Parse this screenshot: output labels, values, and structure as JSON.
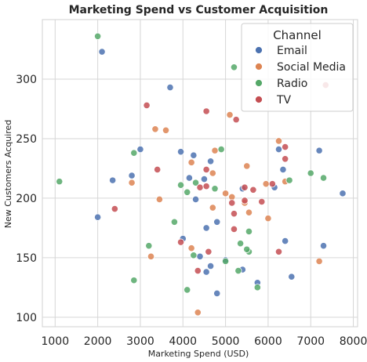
{
  "chart_data": {
    "type": "scatter",
    "title": "Marketing Spend vs Customer Acquisition",
    "xlabel": "Marketing Spend (USD)",
    "ylabel": "New Customers Acquired",
    "xlim": [
      700,
      8100
    ],
    "ylim": [
      92,
      350
    ],
    "xticks": [
      1000,
      2000,
      3000,
      4000,
      5000,
      6000,
      7000,
      8000
    ],
    "yticks": [
      100,
      150,
      200,
      250,
      300
    ],
    "grid": true,
    "legend": {
      "title": "Channel",
      "placement": "top-right"
    },
    "series": [
      {
        "name": "Email",
        "color": "#4c72b0",
        "points": [
          [
            2100,
            323
          ],
          [
            3700,
            293
          ],
          [
            2000,
            184
          ],
          [
            2350,
            215
          ],
          [
            2800,
            219
          ],
          [
            3000,
            241
          ],
          [
            3950,
            239
          ],
          [
            4250,
            236
          ],
          [
            4150,
            217
          ],
          [
            4500,
            216
          ],
          [
            4300,
            199
          ],
          [
            4650,
            231
          ],
          [
            4000,
            166
          ],
          [
            4400,
            151
          ],
          [
            4550,
            138
          ],
          [
            4650,
            143
          ],
          [
            4800,
            120
          ],
          [
            4800,
            180
          ],
          [
            4550,
            175
          ],
          [
            5000,
            148
          ],
          [
            5400,
            208
          ],
          [
            5400,
            140
          ],
          [
            5750,
            129
          ],
          [
            6250,
            241
          ],
          [
            6350,
            224
          ],
          [
            6150,
            209
          ],
          [
            6400,
            164
          ],
          [
            6550,
            134
          ],
          [
            7200,
            240
          ],
          [
            7300,
            160
          ],
          [
            7750,
            204
          ]
        ]
      },
      {
        "name": "Social Media",
        "color": "#dd8452",
        "points": [
          [
            5100,
            270
          ],
          [
            6250,
            248
          ],
          [
            4750,
            240
          ],
          [
            3350,
            258
          ],
          [
            3600,
            257
          ],
          [
            4200,
            230
          ],
          [
            4700,
            221
          ],
          [
            5500,
            227
          ],
          [
            2800,
            213
          ],
          [
            3450,
            199
          ],
          [
            4700,
            192
          ],
          [
            4200,
            158
          ],
          [
            4350,
            104
          ],
          [
            5000,
            204
          ],
          [
            5150,
            201
          ],
          [
            5550,
            188
          ],
          [
            5950,
            212
          ],
          [
            6000,
            183
          ],
          [
            6400,
            214
          ],
          [
            7200,
            147
          ],
          [
            3250,
            151
          ],
          [
            5450,
            196
          ]
        ]
      },
      {
        "name": "Radio",
        "color": "#55a868",
        "points": [
          [
            2000,
            336
          ],
          [
            5200,
            310
          ],
          [
            2850,
            238
          ],
          [
            4900,
            241
          ],
          [
            3950,
            211
          ],
          [
            4100,
            205
          ],
          [
            4750,
            208
          ],
          [
            4300,
            213
          ],
          [
            4250,
            152
          ],
          [
            3200,
            160
          ],
          [
            3800,
            180
          ],
          [
            4100,
            123
          ],
          [
            5350,
            162
          ],
          [
            5000,
            147
          ],
          [
            5550,
            155
          ],
          [
            5550,
            172
          ],
          [
            5300,
            139
          ],
          [
            5750,
            125
          ],
          [
            6500,
            215
          ],
          [
            7000,
            221
          ],
          [
            7300,
            217
          ],
          [
            1100,
            214
          ],
          [
            2850,
            131
          ],
          [
            5500,
            157
          ]
        ]
      },
      {
        "name": "TV",
        "color": "#c44e52",
        "points": [
          [
            3150,
            278
          ],
          [
            7350,
            295
          ],
          [
            4550,
            273
          ],
          [
            5250,
            266
          ],
          [
            3400,
            224
          ],
          [
            4550,
            224
          ],
          [
            4400,
            209
          ],
          [
            4550,
            210
          ],
          [
            2400,
            191
          ],
          [
            4350,
            139
          ],
          [
            4600,
            155
          ],
          [
            3950,
            163
          ],
          [
            5150,
            196
          ],
          [
            5200,
            187
          ],
          [
            5200,
            174
          ],
          [
            5450,
            209
          ],
          [
            5650,
            207
          ],
          [
            5850,
            197
          ],
          [
            6100,
            212
          ],
          [
            6400,
            243
          ],
          [
            6400,
            233
          ],
          [
            6250,
            155
          ],
          [
            5450,
            198
          ]
        ]
      }
    ]
  }
}
